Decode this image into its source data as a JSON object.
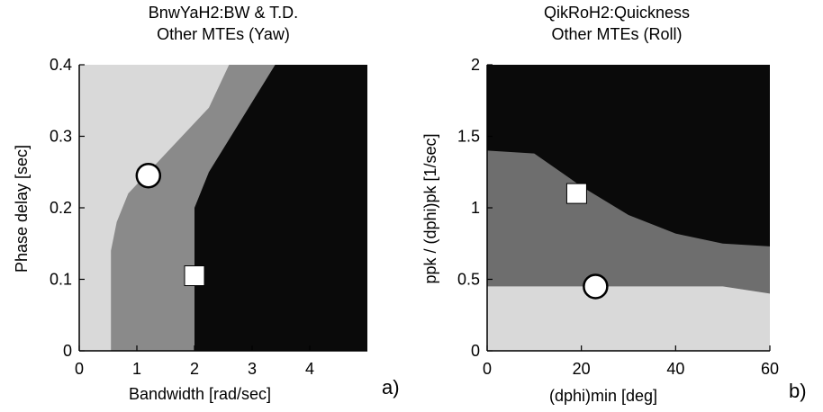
{
  "chart_data": [
    {
      "type": "area",
      "title": "BnwYaH2:BW & T.D.",
      "subtitle": "Other MTEs (Yaw)",
      "xlabel": "Bandwidth [rad/sec]",
      "ylabel": "Phase delay [sec]",
      "xlim": [
        0,
        5
      ],
      "ylim": [
        0,
        0.4
      ],
      "xticks": [
        0,
        1,
        2,
        3,
        4
      ],
      "yticks": [
        0,
        0.1,
        0.2,
        0.3,
        0.4
      ],
      "xtick_labels": [
        "0",
        "1",
        "2",
        "3",
        "4"
      ],
      "ytick_labels": [
        "0",
        "0.1",
        "0.2",
        "0.3",
        "0.4"
      ],
      "panel_label": "a)",
      "region_colors": {
        "level3": "#d9d9d9",
        "level2": "#8a8a8a",
        "level1": "#0a0a0a"
      },
      "boundary_level3_level2": [
        [
          0.55,
          0
        ],
        [
          0.55,
          0.14
        ],
        [
          0.65,
          0.18
        ],
        [
          0.85,
          0.22
        ],
        [
          1.2,
          0.25
        ],
        [
          2.25,
          0.34
        ],
        [
          2.6,
          0.4
        ]
      ],
      "boundary_level2_level1": [
        [
          2.0,
          0
        ],
        [
          2.0,
          0.2
        ],
        [
          2.25,
          0.25
        ],
        [
          3.4,
          0.4
        ]
      ],
      "points": [
        {
          "marker": "circle",
          "x": 1.2,
          "y": 0.245
        },
        {
          "marker": "square",
          "x": 2.0,
          "y": 0.105
        }
      ]
    },
    {
      "type": "area",
      "title": "QikRoH2:Quickness",
      "subtitle": "Other MTEs (Roll)",
      "xlabel": "(dphi)min [deg]",
      "ylabel": "ppk / (dphi)pk  [1/sec]",
      "xlim": [
        0,
        60
      ],
      "ylim": [
        0,
        2
      ],
      "xticks": [
        0,
        20,
        40,
        60
      ],
      "yticks": [
        0,
        0.5,
        1,
        1.5,
        2
      ],
      "xtick_labels": [
        "0",
        "20",
        "40",
        "60"
      ],
      "ytick_labels": [
        "0",
        "0.5",
        "1",
        "1.5",
        "2"
      ],
      "panel_label": "b)",
      "region_colors": {
        "level1": "#d9d9d9",
        "level2": "#6e6e6e",
        "level3": "#0a0a0a"
      },
      "boundary_level1_level2": [
        [
          0,
          0.45
        ],
        [
          30,
          0.45
        ],
        [
          50,
          0.45
        ],
        [
          60,
          0.4
        ]
      ],
      "boundary_level2_level3": [
        [
          0,
          1.4
        ],
        [
          10,
          1.38
        ],
        [
          20,
          1.15
        ],
        [
          30,
          0.95
        ],
        [
          40,
          0.82
        ],
        [
          50,
          0.75
        ],
        [
          60,
          0.73
        ]
      ],
      "points": [
        {
          "marker": "square",
          "x": 19,
          "y": 1.1
        },
        {
          "marker": "circle",
          "x": 23,
          "y": 0.45
        }
      ]
    }
  ]
}
